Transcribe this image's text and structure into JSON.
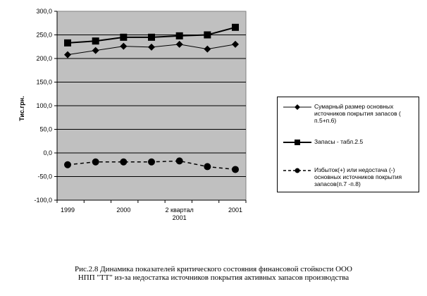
{
  "chart_data": {
    "type": "line",
    "ylabel": "Тис.грн.",
    "ylim": [
      -100,
      300
    ],
    "yticks": [
      "300,0",
      "250,0",
      "200,0",
      "150,0",
      "100,0",
      "50,0",
      "0,0",
      "-50,0",
      "-100,0"
    ],
    "ytick_values": [
      300,
      250,
      200,
      150,
      100,
      50,
      0,
      -50,
      -100
    ],
    "categories": [
      "1999",
      "",
      "2000",
      "",
      "2 квартал 2001",
      "",
      "2001"
    ],
    "xtick_labels": [
      {
        "index": 0,
        "lines": [
          "1999"
        ]
      },
      {
        "index": 2,
        "lines": [
          "2000"
        ]
      },
      {
        "index": 4,
        "lines": [
          "2 квартал",
          "2001"
        ]
      },
      {
        "index": 6,
        "lines": [
          "2001"
        ]
      }
    ],
    "grid": "horizontal",
    "background": "#c0c0c0",
    "legend_position": "right",
    "series": [
      {
        "name": "Сумарный размер основных источников покрытия запасов ( п.5+п.6)",
        "marker": "diamond",
        "line": "solid",
        "values": [
          208,
          217,
          226,
          224,
          230,
          220,
          230
        ]
      },
      {
        "name": "Запасы - табл.2.5",
        "marker": "square",
        "line": "solid-thick",
        "values": [
          233,
          237,
          245,
          245,
          248,
          250,
          266
        ]
      },
      {
        "name": "Избыток(+) или недостача (-) основных источников покрытия запасов(п.7 -п.8)",
        "marker": "circle",
        "line": "dashed",
        "values": [
          -25,
          -19,
          -19,
          -19,
          -17,
          -29,
          -35
        ]
      }
    ]
  },
  "legend": {
    "items": [
      {
        "lines": [
          "Сумарный размер основных",
          "источников покрытия запасов (",
          "п.5+п.6)"
        ]
      },
      {
        "lines": [
          "Запасы - табл.2.5"
        ]
      },
      {
        "lines": [
          "Избыток(+) или недостача (-)",
          "основных источников покрытия",
          "запасов(п.7 -п.8)"
        ]
      }
    ]
  },
  "caption": {
    "line1": "Рис.2.8 Динамика показателей критического состояния финансовой стойкости ООО",
    "line2": "НПП \"ТТ\" из-за недостатка источников покрытия активных запасов производства"
  }
}
